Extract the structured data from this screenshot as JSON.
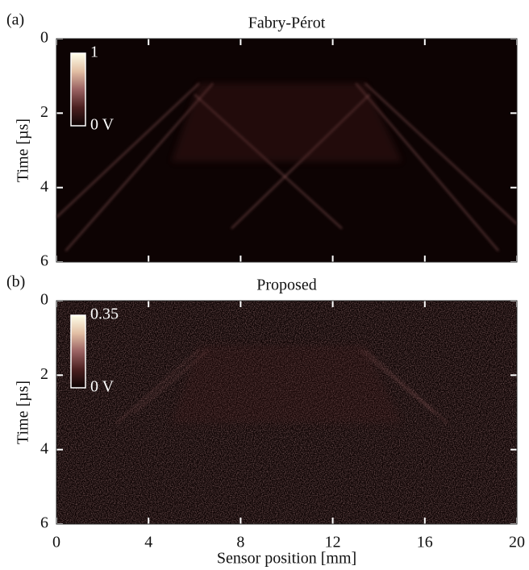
{
  "chart_data": [
    {
      "type": "heatmap",
      "panel_label": "(a)",
      "title": "Fabry-Pérot",
      "ylabel": "Time [µs]",
      "xlim": [
        0,
        20
      ],
      "xticks": [
        0,
        4,
        8,
        12,
        16,
        20
      ],
      "ylim": [
        0,
        6
      ],
      "yticks": [
        0,
        2,
        4,
        6
      ],
      "y_inverted": true,
      "colormap": [
        "#0d0303",
        "#4a1f1f",
        "#9a6262",
        "#e2bfa4",
        "#ffffea"
      ],
      "colorbar": {
        "clim": [
          0,
          1
        ],
        "ticks": [
          1,
          {
            "value": 0,
            "label": "0 V"
          }
        ]
      }
    },
    {
      "type": "heatmap",
      "panel_label": "(b)",
      "title": "Proposed",
      "ylabel": "Time [µs]",
      "xlabel": "Sensor position [mm]",
      "xlim": [
        0,
        20
      ],
      "xticks": [
        0,
        4,
        8,
        12,
        16,
        20
      ],
      "ylim": [
        0,
        6
      ],
      "yticks": [
        0,
        2,
        4,
        6
      ],
      "y_inverted": true,
      "colormap": [
        "#0d0303",
        "#4a1f1f",
        "#9a6262",
        "#e2bfa4",
        "#ffffea"
      ],
      "colorbar": {
        "clim": [
          0,
          0.35
        ],
        "ticks": [
          0.35,
          {
            "value": 0,
            "label": "0 V"
          }
        ]
      }
    }
  ]
}
